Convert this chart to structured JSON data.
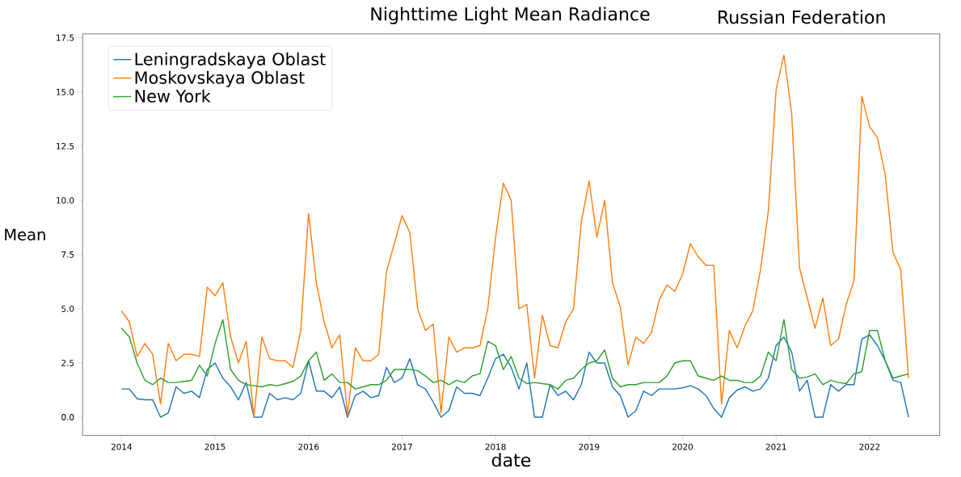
{
  "chart_data": {
    "type": "line",
    "title": "Nighttime Light Mean Radiance",
    "subtitle": "Russian Federation",
    "xlabel": "date",
    "ylabel": "Mean",
    "x": [
      "2014-01",
      "2014-02",
      "2014-03",
      "2014-04",
      "2014-05",
      "2014-06",
      "2014-07",
      "2014-08",
      "2014-09",
      "2014-10",
      "2014-11",
      "2014-12",
      "2015-01",
      "2015-02",
      "2015-03",
      "2015-04",
      "2015-05",
      "2015-06",
      "2015-07",
      "2015-08",
      "2015-09",
      "2015-10",
      "2015-11",
      "2015-12",
      "2016-01",
      "2016-02",
      "2016-03",
      "2016-04",
      "2016-05",
      "2016-06",
      "2016-07",
      "2016-08",
      "2016-09",
      "2016-10",
      "2016-11",
      "2016-12",
      "2017-01",
      "2017-02",
      "2017-03",
      "2017-04",
      "2017-05",
      "2017-06",
      "2017-07",
      "2017-08",
      "2017-09",
      "2017-10",
      "2017-11",
      "2017-12",
      "2018-01",
      "2018-02",
      "2018-03",
      "2018-04",
      "2018-05",
      "2018-06",
      "2018-07",
      "2018-08",
      "2018-09",
      "2018-10",
      "2018-11",
      "2018-12",
      "2019-01",
      "2019-02",
      "2019-03",
      "2019-04",
      "2019-05",
      "2019-06",
      "2019-07",
      "2019-08",
      "2019-09",
      "2019-10",
      "2019-11",
      "2019-12",
      "2020-01",
      "2020-02",
      "2020-03",
      "2020-04",
      "2020-05",
      "2020-06",
      "2020-07",
      "2020-08",
      "2020-09",
      "2020-10",
      "2020-11",
      "2020-12",
      "2021-01",
      "2021-02",
      "2021-03",
      "2021-04",
      "2021-05",
      "2021-06",
      "2021-07",
      "2021-08",
      "2021-09",
      "2021-10",
      "2021-11",
      "2021-12",
      "2022-01",
      "2022-02",
      "2022-03",
      "2022-04",
      "2022-05",
      "2022-06"
    ],
    "series": [
      {
        "name": "Leningradskaya Oblast",
        "color": "#1f77b4",
        "values": [
          1.3,
          1.3,
          0.85,
          0.8,
          0.8,
          0.0,
          0.2,
          1.4,
          1.1,
          1.2,
          0.9,
          2.2,
          2.5,
          1.8,
          1.4,
          0.8,
          1.6,
          0.0,
          0.0,
          1.1,
          0.8,
          0.9,
          0.8,
          1.1,
          2.6,
          1.2,
          1.2,
          0.9,
          1.4,
          0.0,
          1.0,
          1.2,
          0.9,
          1.0,
          2.3,
          1.6,
          1.8,
          2.7,
          1.5,
          1.3,
          0.7,
          0.0,
          0.3,
          1.4,
          1.1,
          1.1,
          1.0,
          1.8,
          2.7,
          2.9,
          2.3,
          1.3,
          2.5,
          0.0,
          0.0,
          1.5,
          1.0,
          1.2,
          0.8,
          1.5,
          3.0,
          2.5,
          2.5,
          1.4,
          1.0,
          0.0,
          0.3,
          1.2,
          1.0,
          1.3,
          1.3,
          1.3,
          1.35,
          1.45,
          1.3,
          1.0,
          0.4,
          0.0,
          0.9,
          1.25,
          1.4,
          1.2,
          1.3,
          1.8,
          3.3,
          3.7,
          3.0,
          1.2,
          1.7,
          0.0,
          0.0,
          1.5,
          1.2,
          1.5,
          1.5,
          3.6,
          3.8,
          3.3,
          2.6,
          1.7,
          1.6,
          0.0
        ]
      },
      {
        "name": "Moskovskaya Oblast",
        "color": "#ff7f0e",
        "values": [
          4.9,
          4.4,
          2.8,
          3.4,
          2.9,
          0.6,
          3.4,
          2.6,
          2.9,
          2.9,
          2.8,
          6.0,
          5.6,
          6.2,
          3.7,
          2.5,
          3.5,
          0.0,
          3.7,
          2.7,
          2.6,
          2.6,
          2.3,
          4.0,
          9.4,
          6.2,
          4.4,
          3.2,
          3.8,
          0.1,
          3.2,
          2.6,
          2.6,
          2.9,
          6.7,
          8.0,
          9.3,
          8.5,
          5.0,
          4.0,
          4.3,
          0.2,
          3.7,
          3.0,
          3.2,
          3.2,
          3.3,
          5.0,
          8.3,
          10.8,
          10.0,
          5.0,
          5.2,
          1.8,
          4.7,
          3.3,
          3.2,
          4.4,
          5.0,
          9.0,
          10.9,
          8.3,
          10.0,
          6.2,
          5.1,
          2.4,
          3.7,
          3.4,
          3.9,
          5.4,
          6.1,
          5.8,
          6.6,
          8.0,
          7.4,
          7.0,
          7.0,
          0.6,
          4.0,
          3.2,
          4.2,
          4.9,
          6.8,
          9.5,
          15.1,
          16.7,
          14.0,
          6.9,
          5.5,
          4.1,
          5.5,
          3.3,
          3.6,
          5.2,
          6.3,
          14.8,
          13.4,
          12.9,
          11.2,
          7.6,
          6.8,
          1.8
        ]
      },
      {
        "name": "New York",
        "color": "#2ca02c",
        "values": [
          4.1,
          3.7,
          2.5,
          1.7,
          1.5,
          1.8,
          1.6,
          1.6,
          1.65,
          1.7,
          2.4,
          1.9,
          3.4,
          4.5,
          2.2,
          1.7,
          1.5,
          1.45,
          1.4,
          1.5,
          1.45,
          1.55,
          1.65,
          1.9,
          2.6,
          3.0,
          1.7,
          2.0,
          1.6,
          1.6,
          1.3,
          1.4,
          1.5,
          1.5,
          1.7,
          2.2,
          2.2,
          2.2,
          2.15,
          1.9,
          1.6,
          1.7,
          1.5,
          1.7,
          1.6,
          1.9,
          2.0,
          3.5,
          3.3,
          2.2,
          2.8,
          1.8,
          1.55,
          1.6,
          1.55,
          1.5,
          1.3,
          1.7,
          1.8,
          2.2,
          2.5,
          2.6,
          3.1,
          1.8,
          1.4,
          1.5,
          1.5,
          1.6,
          1.6,
          1.6,
          1.9,
          2.5,
          2.6,
          2.6,
          1.9,
          1.8,
          1.7,
          1.9,
          1.7,
          1.7,
          1.6,
          1.6,
          1.9,
          3.0,
          2.6,
          4.5,
          2.2,
          1.8,
          1.85,
          2.0,
          1.5,
          1.7,
          1.6,
          1.55,
          2.0,
          2.1,
          4.0,
          4.0,
          2.6,
          1.8,
          1.9,
          2.0
        ]
      }
    ],
    "xlim": [
      "2013-08",
      "2022-10"
    ],
    "xticks": [
      "2014",
      "2015",
      "2016",
      "2017",
      "2018",
      "2019",
      "2020",
      "2021",
      "2022"
    ],
    "ylim": [
      -0.84,
      17.68
    ],
    "yticks": [
      {
        "value": 0,
        "label": "0.0"
      },
      {
        "value": 2.5,
        "label": "2.5"
      },
      {
        "value": 5,
        "label": "5.0"
      },
      {
        "value": 7.5,
        "label": "7.5"
      },
      {
        "value": 10,
        "label": "10.0"
      },
      {
        "value": 12.5,
        "label": "12.5"
      },
      {
        "value": 15,
        "label": "15.0"
      },
      {
        "value": 17.5,
        "label": "17.5"
      }
    ],
    "legend": "top left",
    "grid": false,
    "marker": "none",
    "line_style": "solid"
  }
}
